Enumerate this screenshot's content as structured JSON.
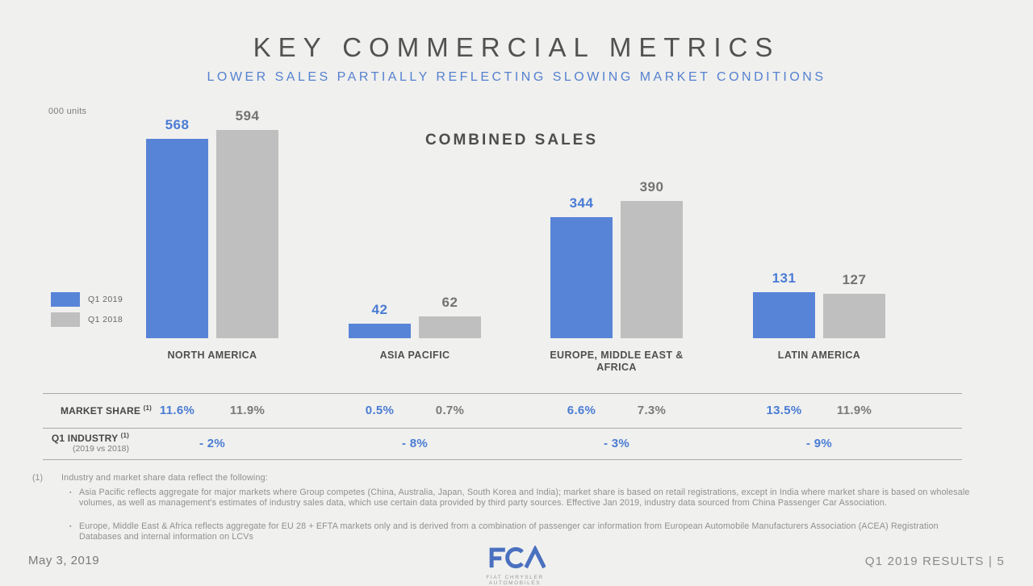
{
  "header": {
    "title": "KEY COMMERCIAL METRICS",
    "subtitle": "LOWER SALES PARTIALLY REFLECTING SLOWING MARKET CONDITIONS"
  },
  "colors": {
    "q1_2019_bar": "#5884d8",
    "q1_2018_bar": "#bfbfbf",
    "blue_text": "#4a7cd4",
    "gray_value_text": "#737373",
    "background": "#f0f0ee"
  },
  "chart_data": {
    "type": "bar",
    "title": "COMBINED SALES",
    "units": "000 units",
    "legend_position": "middle-left",
    "grid": false,
    "categories": [
      "NORTH AMERICA",
      "ASIA PACIFIC",
      "EUROPE, MIDDLE EAST & AFRICA",
      "LATIN AMERICA"
    ],
    "series": [
      {
        "name": "Q1 2019",
        "color": "#5884d8",
        "values": [
          568,
          42,
          344,
          131
        ]
      },
      {
        "name": "Q1 2018",
        "color": "#bfbfbf",
        "values": [
          594,
          62,
          390,
          127
        ]
      }
    ]
  },
  "table": {
    "rows": [
      {
        "label": "MARKET SHARE",
        "superscript": "(1)",
        "pairs": [
          [
            "11.6%",
            "11.9%"
          ],
          [
            "0.5%",
            "0.7%"
          ],
          [
            "6.6%",
            "7.3%"
          ],
          [
            "13.5%",
            "11.9%"
          ]
        ]
      },
      {
        "label": "Q1 INDUSTRY",
        "superscript": "(1)",
        "sublabel": "(2019 vs 2018)",
        "values": [
          "- 2%",
          "- 8%",
          "- 3%",
          "- 9%"
        ]
      }
    ]
  },
  "footnotes": {
    "marker": "(1)",
    "intro": "Industry and market share data reflect the following:",
    "bullets": [
      "Asia Pacific reflects aggregate for major markets where Group competes (China, Australia, Japan, South Korea and India); market share is based on retail registrations, except in India where market share is based on wholesale volumes, as well as management's estimates of industry sales data, which use certain data provided by third party sources.  Effective Jan 2019, industry data sourced from China Passenger Car Association.",
      "Europe, Middle East & Africa reflects aggregate for EU 28 + EFTA markets only and is derived from a combination of passenger car information from European Automobile Manufacturers Association (ACEA) Registration Databases and internal information on LCVs"
    ]
  },
  "footer": {
    "date": "May 3, 2019",
    "logo": {
      "name": "FCA",
      "tagline": "FIAT CHRYSLER AUTOMOBILES"
    },
    "page_label": "Q1 2019 RESULTS | 5"
  }
}
